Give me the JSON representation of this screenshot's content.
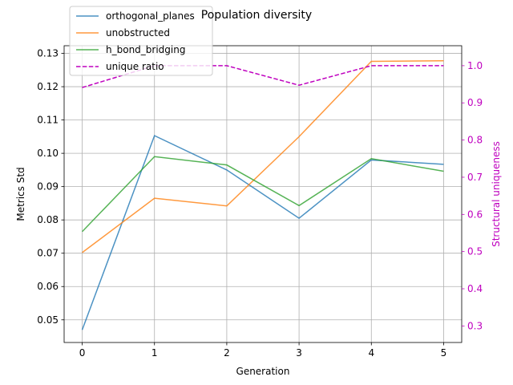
{
  "chart_data": {
    "type": "line",
    "title": "Population diversity",
    "xlabel": "Generation",
    "ylabel": "Metrics Std",
    "y2label": "Structural uniqueness",
    "x": [
      0,
      1,
      2,
      3,
      4,
      5
    ],
    "xlim": [
      -0.25,
      5.25
    ],
    "ylim": [
      0.0432,
      0.1323
    ],
    "y2lim": [
      0.2555,
      1.0537
    ],
    "y_ticks": [
      "0.05",
      "0.06",
      "0.07",
      "0.08",
      "0.09",
      "0.10",
      "0.11",
      "0.12",
      "0.13"
    ],
    "y2_ticks": [
      "0.3",
      "0.4",
      "0.5",
      "0.6",
      "0.7",
      "0.8",
      "0.9",
      "1.0"
    ],
    "grid": true,
    "legend": "top-left",
    "series": [
      {
        "name": "orthogonal_planes",
        "axis": "left",
        "color": "#1f77b4",
        "style": "solid",
        "values": [
          0.047,
          0.1053,
          0.095,
          0.0805,
          0.098,
          0.0967
        ]
      },
      {
        "name": "unobstructed",
        "axis": "left",
        "color": "#ff7f0e",
        "style": "solid",
        "values": [
          0.0702,
          0.0865,
          0.0842,
          0.105,
          0.1276,
          0.1278
        ]
      },
      {
        "name": "h_bond_bridging",
        "axis": "left",
        "color": "#2ca02c",
        "style": "solid",
        "values": [
          0.0765,
          0.099,
          0.0965,
          0.0843,
          0.0984,
          0.0946
        ]
      },
      {
        "name": "unique ratio",
        "axis": "right",
        "color": "#bf00bf",
        "style": "dashed",
        "values": [
          0.9412,
          1.0,
          1.0,
          0.9474,
          1.0,
          1.0
        ]
      }
    ]
  }
}
